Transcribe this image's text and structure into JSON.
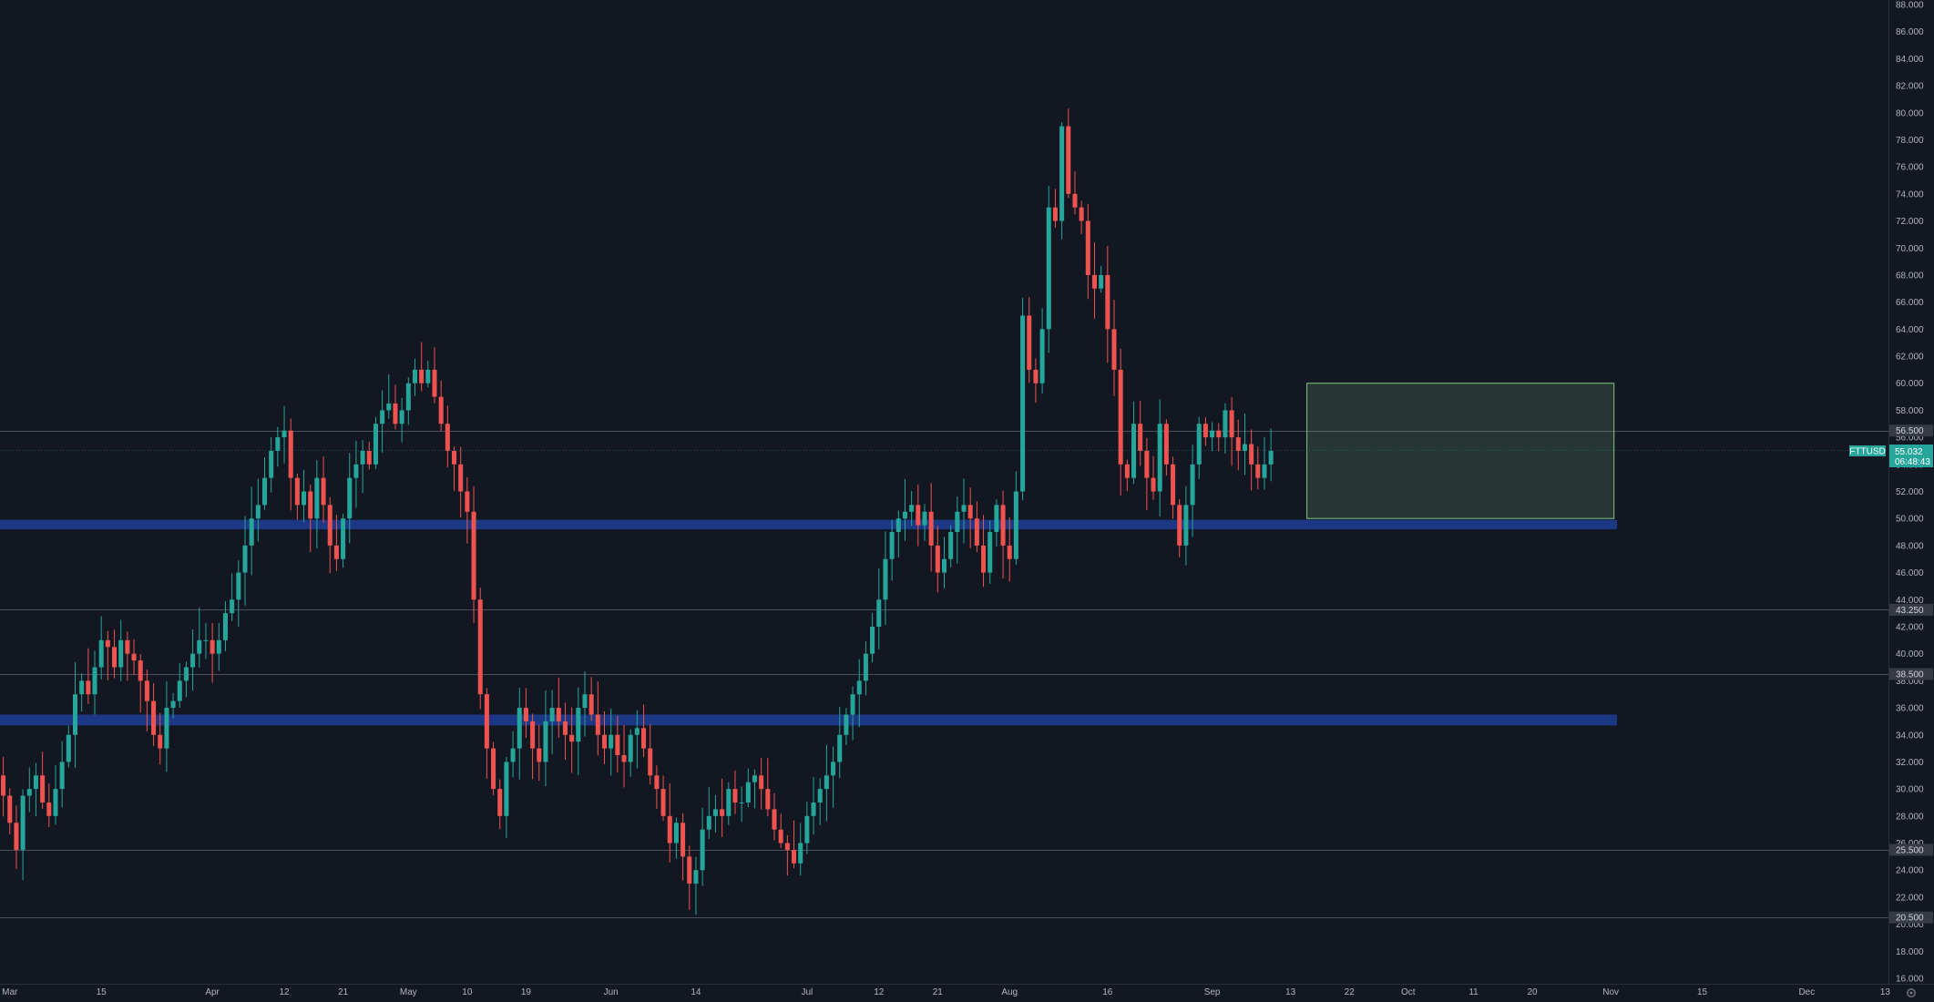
{
  "chart_data": {
    "type": "candlestick",
    "symbol": "FTTUSD",
    "last_price": "55.032",
    "countdown": "06:48:43",
    "y_axis": {
      "min": 16,
      "max": 88,
      "ticks": [
        "88.000",
        "86.000",
        "84.000",
        "82.000",
        "80.000",
        "78.000",
        "76.000",
        "74.000",
        "72.000",
        "70.000",
        "68.000",
        "66.000",
        "64.000",
        "62.000",
        "60.000",
        "58.000",
        "56.000",
        "54.000",
        "52.000",
        "50.000",
        "48.000",
        "46.000",
        "44.000",
        "42.000",
        "40.000",
        "38.000",
        "36.000",
        "34.000",
        "32.000",
        "30.000",
        "28.000",
        "26.000",
        "24.000",
        "22.000",
        "20.000",
        "18.000",
        "16.000"
      ]
    },
    "x_axis": {
      "start": "2021-02-28",
      "end": "2021-12-14",
      "labels": [
        {
          "date": "2021-03-01",
          "text": "Mar"
        },
        {
          "date": "2021-03-15",
          "text": "15"
        },
        {
          "date": "2021-04-01",
          "text": "Apr"
        },
        {
          "date": "2021-04-12",
          "text": "12"
        },
        {
          "date": "2021-04-21",
          "text": "21"
        },
        {
          "date": "2021-05-01",
          "text": "May"
        },
        {
          "date": "2021-05-10",
          "text": "10"
        },
        {
          "date": "2021-05-19",
          "text": "19"
        },
        {
          "date": "2021-06-01",
          "text": "Jun"
        },
        {
          "date": "2021-06-14",
          "text": "14"
        },
        {
          "date": "2021-07-01",
          "text": "Jul"
        },
        {
          "date": "2021-07-12",
          "text": "12"
        },
        {
          "date": "2021-07-21",
          "text": "21"
        },
        {
          "date": "2021-08-01",
          "text": "Aug"
        },
        {
          "date": "2021-08-16",
          "text": "16"
        },
        {
          "date": "2021-09-01",
          "text": "Sep"
        },
        {
          "date": "2021-09-13",
          "text": "13"
        },
        {
          "date": "2021-09-22",
          "text": "22"
        },
        {
          "date": "2021-10-01",
          "text": "Oct"
        },
        {
          "date": "2021-10-11",
          "text": "11"
        },
        {
          "date": "2021-10-20",
          "text": "20"
        },
        {
          "date": "2021-11-01",
          "text": "Nov"
        },
        {
          "date": "2021-11-15",
          "text": "15"
        },
        {
          "date": "2021-12-01",
          "text": "Dec"
        },
        {
          "date": "2021-12-13",
          "text": "13"
        }
      ]
    },
    "horizontal_levels": [
      {
        "price": 56.5,
        "label": "56.500"
      },
      {
        "price": 43.25,
        "label": "43.250"
      },
      {
        "price": 38.5,
        "label": "38.500"
      },
      {
        "price": 25.5,
        "label": "25.500"
      },
      {
        "price": 20.5,
        "label": "20.500"
      }
    ],
    "zones": [
      {
        "from": 49.2,
        "to": 49.9
      },
      {
        "from": 34.7,
        "to": 35.5
      }
    ],
    "range_box": {
      "start": "2021-09-16",
      "end": "2021-11-02",
      "low": 50.0,
      "high": 60.0
    },
    "candles_close": [
      29.5,
      27.5,
      25.5,
      29.5,
      30.0,
      31.0,
      29.0,
      28.0,
      30.0,
      32.0,
      34.0,
      37.0,
      38.0,
      37.0,
      39.0,
      41.0,
      40.5,
      39.0,
      41.0,
      40.0,
      39.5,
      38.0,
      36.5,
      34.0,
      33.0,
      36.0,
      36.5,
      38.0,
      39.0,
      40.0,
      41.0,
      41.0,
      40.0,
      41.0,
      43.0,
      44.0,
      46.0,
      48.0,
      50.0,
      51.0,
      53.0,
      55.0,
      56.0,
      56.5,
      53.0,
      51.0,
      52.0,
      50.0,
      53.0,
      51.0,
      48.0,
      47.0,
      50.0,
      53.0,
      54.0,
      55.0,
      54.0,
      57.0,
      58.0,
      58.5,
      57.0,
      58.0,
      60.0,
      61.0,
      60.0,
      61.0,
      59.0,
      57.0,
      55.0,
      54.0,
      52.0,
      50.5,
      44.0,
      37.0,
      33.0,
      30.0,
      28.0,
      32.0,
      33.0,
      36.0,
      35.0,
      33.0,
      32.0,
      35.0,
      36.0,
      35.0,
      34.0,
      33.5,
      36.0,
      37.0,
      35.5,
      34.0,
      33.0,
      34.0,
      32.5,
      32.0,
      34.0,
      34.5,
      33.0,
      31.0,
      30.0,
      28.0,
      26.0,
      27.5,
      25.0,
      23.0,
      24.0,
      27.0,
      28.0,
      28.5,
      28.0,
      30.0,
      29.0,
      29.0,
      30.5,
      31.0,
      30.0,
      28.5,
      27.0,
      26.0,
      25.5,
      24.5,
      26.0,
      28.0,
      29.0,
      30.0,
      31.0,
      32.0,
      34.0,
      35.5,
      37.0,
      38.0,
      40.0,
      42.0,
      44.0,
      47.0,
      49.0,
      50.0,
      50.5,
      51.0,
      49.5,
      50.5,
      48.0,
      46.0,
      47.0,
      49.0,
      50.5,
      51.0,
      50.0,
      48.0,
      46.0,
      49.0,
      51.0,
      48.0,
      47.0,
      52.0,
      65.0,
      61.0,
      60.0,
      64.0,
      73.0,
      72.0,
      79.0,
      74.0,
      73.0,
      72.0,
      68.0,
      67.0,
      68.0,
      64.0,
      61.0,
      54.0,
      53.0,
      57.0,
      55.0,
      53.0,
      52.0,
      57.0,
      54.0,
      51.0,
      48.0,
      51.0,
      54.0,
      57.0,
      56.0,
      56.5,
      56.0,
      58.0,
      56.0,
      55.0,
      55.5,
      54.0,
      53.0,
      54.0,
      55.0
    ]
  }
}
